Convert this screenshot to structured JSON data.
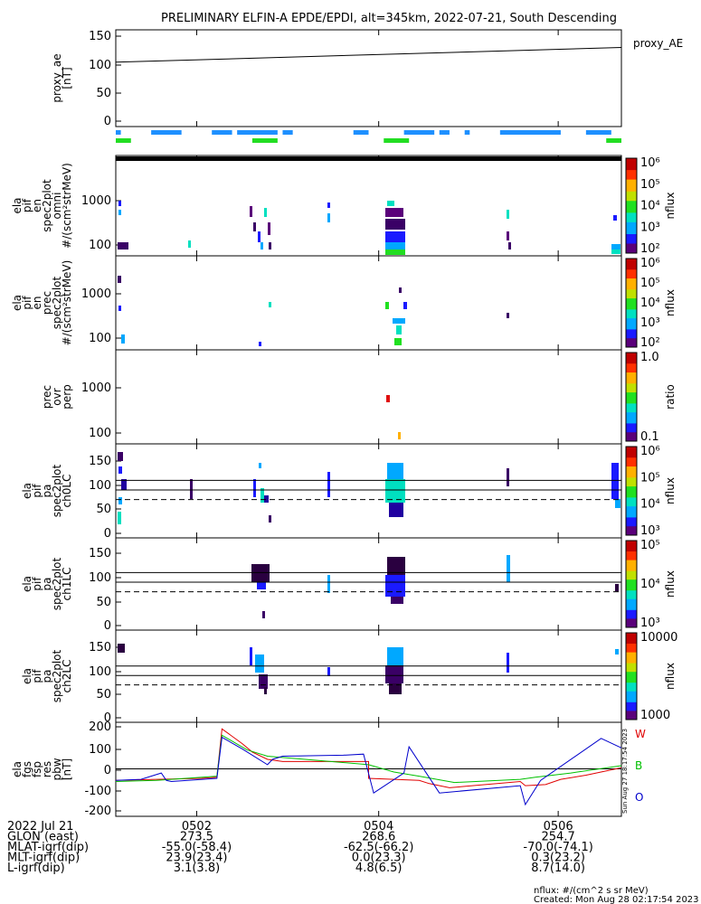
{
  "title": "PRELIMINARY ELFIN-A EPDE/EPDI, alt=345km, 2022-07-21, South Descending",
  "colors": {
    "proxy_bar": "#1e90ff",
    "science_bar": "#22dd22",
    "trace_w": "#e00000",
    "trace_b": "#00c000",
    "trace_o": "#0000cc"
  },
  "side_note": "Sun Aug 27 18:17:54 2023",
  "footer": {
    "unit_note": "nflux: #/(cm^2 s sr MeV)",
    "created": "Created: Mon Aug 28 02:17:54 2023"
  },
  "time_axis": {
    "major_ticks": [
      "0502",
      "0504",
      "0506"
    ],
    "rows": [
      {
        "label": "2022 Jul 21",
        "values": [
          "",
          "",
          ""
        ]
      },
      {
        "label": "GLON (east)",
        "values": [
          "273.5",
          "268.6",
          "254.7"
        ]
      },
      {
        "label": "MLAT-igrf(dip)",
        "values": [
          "-55.0(-58.4)",
          "-62.5(-66.2)",
          "-70.0(-74.1)"
        ]
      },
      {
        "label": "MLT-igrf(dip)",
        "values": [
          "23.9(23.4)",
          "0.0(23.3)",
          "0.3(23.2)"
        ]
      },
      {
        "label": "L-igrf(dip)",
        "values": [
          "3.1(3.8)",
          "4.8(6.5)",
          "8.7(14.0)"
        ]
      }
    ]
  },
  "chart_data": [
    {
      "type": "line",
      "panel": "proxy_ae",
      "ylabel": [
        "proxy_ae",
        "[nT]"
      ],
      "yticks": [
        "0",
        "50",
        "100",
        "150"
      ],
      "ylim": [
        0,
        150
      ],
      "legend": "proxy_AE",
      "series": [
        {
          "values": [
            [
              0,
              104
            ],
            [
              1,
              130
            ]
          ]
        }
      ],
      "bars": {
        "blue": [
          [
            0.0,
            0.01
          ],
          [
            0.07,
            0.13
          ],
          [
            0.19,
            0.23
          ],
          [
            0.24,
            0.32
          ],
          [
            0.33,
            0.35
          ],
          [
            0.47,
            0.5
          ],
          [
            0.57,
            0.63
          ],
          [
            0.64,
            0.66
          ],
          [
            0.69,
            0.7
          ],
          [
            0.76,
            0.88
          ],
          [
            0.93,
            0.98
          ]
        ],
        "green": [
          [
            0.0,
            0.03
          ],
          [
            0.27,
            0.32
          ],
          [
            0.53,
            0.58
          ],
          [
            0.97,
            1.0
          ]
        ]
      }
    },
    {
      "type": "heatmap",
      "panel": "omni",
      "ylabel": [
        "ela",
        "pif",
        "en",
        "spec2plot",
        "omni",
        "#/(scm²strMeV)"
      ],
      "yticks": [
        "100",
        "1000"
      ],
      "scale": "log",
      "colorbar": {
        "label": "nflux",
        "ticks": [
          "10²",
          "10³",
          "10⁴",
          "10⁵",
          "10⁶"
        ]
      }
    },
    {
      "type": "heatmap",
      "panel": "prec",
      "ylabel": [
        "ela",
        "pif",
        "en",
        "prec",
        "spec2plot",
        "#/(scm²strMeV)"
      ],
      "yticks": [
        "100",
        "1000"
      ],
      "scale": "log",
      "colorbar": {
        "label": "nflux",
        "ticks": [
          "10²",
          "10³",
          "10⁴",
          "10⁵",
          "10⁶"
        ]
      }
    },
    {
      "type": "heatmap",
      "panel": "ratio",
      "ylabel": [
        "prec",
        "ovr",
        "perp"
      ],
      "yticks": [
        "100",
        "1000"
      ],
      "scale": "log",
      "colorbar": {
        "label": "ratio",
        "ticks": [
          "0.1",
          "1.0"
        ]
      }
    },
    {
      "type": "heatmap",
      "panel": "pa0",
      "ylabel": [
        "ela",
        "pif",
        "pa",
        "spec2plot",
        "ch0LC"
      ],
      "yticks": [
        "0",
        "50",
        "100",
        "150"
      ],
      "ylim": [
        0,
        180
      ],
      "solid_lines": [
        90,
        110
      ],
      "dashed_line": 70,
      "colorbar": {
        "label": "nflux",
        "ticks": [
          "10³",
          "10⁴",
          "10⁵",
          "10⁶"
        ]
      }
    },
    {
      "type": "heatmap",
      "panel": "pa1",
      "ylabel": [
        "ela",
        "pif",
        "pa",
        "spec2plot",
        "ch1LC"
      ],
      "yticks": [
        "0",
        "50",
        "100",
        "150"
      ],
      "ylim": [
        0,
        180
      ],
      "solid_lines": [
        90,
        110
      ],
      "dashed_line": 70,
      "colorbar": {
        "label": "nflux",
        "ticks": [
          "10³",
          "10⁴",
          "10⁵"
        ]
      }
    },
    {
      "type": "heatmap",
      "panel": "pa2",
      "ylabel": [
        "ela",
        "pif",
        "pa",
        "spec2plot",
        "ch2LC"
      ],
      "yticks": [
        "0",
        "50",
        "100",
        "150"
      ],
      "ylim": [
        0,
        180
      ],
      "solid_lines": [
        90,
        110
      ],
      "dashed_line": 70,
      "colorbar": {
        "label": "nflux",
        "ticks": [
          "1000",
          "10000"
        ]
      }
    },
    {
      "type": "line",
      "panel": "fgs",
      "ylabel": [
        "ela",
        "fgs",
        "fsp",
        "res",
        "pbw",
        "[nT]"
      ],
      "yticks": [
        "-200",
        "-100",
        "0",
        "100",
        "200"
      ],
      "ylim": [
        -220,
        210
      ],
      "legend": [
        "W",
        "B",
        "O"
      ],
      "series": [
        {
          "name": "W",
          "values": [
            [
              0.0,
              -55
            ],
            [
              0.08,
              -50
            ],
            [
              0.17,
              -45
            ],
            [
              0.2,
              -40
            ],
            [
              0.21,
              190
            ],
            [
              0.25,
              120
            ],
            [
              0.27,
              80
            ],
            [
              0.3,
              45
            ],
            [
              0.33,
              35
            ],
            [
              0.5,
              35
            ],
            [
              0.5,
              -45
            ],
            [
              0.55,
              -50
            ],
            [
              0.6,
              -55
            ],
            [
              0.62,
              -70
            ],
            [
              0.66,
              -90
            ],
            [
              0.8,
              -60
            ],
            [
              0.81,
              -80
            ],
            [
              0.85,
              -75
            ],
            [
              0.88,
              -50
            ],
            [
              0.93,
              -30
            ],
            [
              1.0,
              5
            ]
          ]
        },
        {
          "name": "B",
          "values": [
            [
              0.0,
              -60
            ],
            [
              0.08,
              -55
            ],
            [
              0.2,
              -35
            ],
            [
              0.21,
              160
            ],
            [
              0.26,
              90
            ],
            [
              0.3,
              60
            ],
            [
              0.5,
              20
            ],
            [
              0.55,
              -15
            ],
            [
              0.6,
              -35
            ],
            [
              0.67,
              -65
            ],
            [
              0.8,
              -50
            ],
            [
              0.83,
              -40
            ],
            [
              0.9,
              -20
            ],
            [
              1.0,
              15
            ]
          ]
        },
        {
          "name": "O",
          "values": [
            [
              0.0,
              -55
            ],
            [
              0.05,
              -50
            ],
            [
              0.09,
              -20
            ],
            [
              0.1,
              -55
            ],
            [
              0.11,
              -60
            ],
            [
              0.2,
              -45
            ],
            [
              0.21,
              150
            ],
            [
              0.25,
              95
            ],
            [
              0.3,
              20
            ],
            [
              0.31,
              45
            ],
            [
              0.33,
              60
            ],
            [
              0.45,
              65
            ],
            [
              0.49,
              70
            ],
            [
              0.51,
              -115
            ],
            [
              0.57,
              -20
            ],
            [
              0.58,
              105
            ],
            [
              0.64,
              -115
            ],
            [
              0.8,
              -80
            ],
            [
              0.81,
              -170
            ],
            [
              0.84,
              -55
            ],
            [
              0.96,
              145
            ],
            [
              1.0,
              100
            ]
          ]
        }
      ]
    }
  ]
}
